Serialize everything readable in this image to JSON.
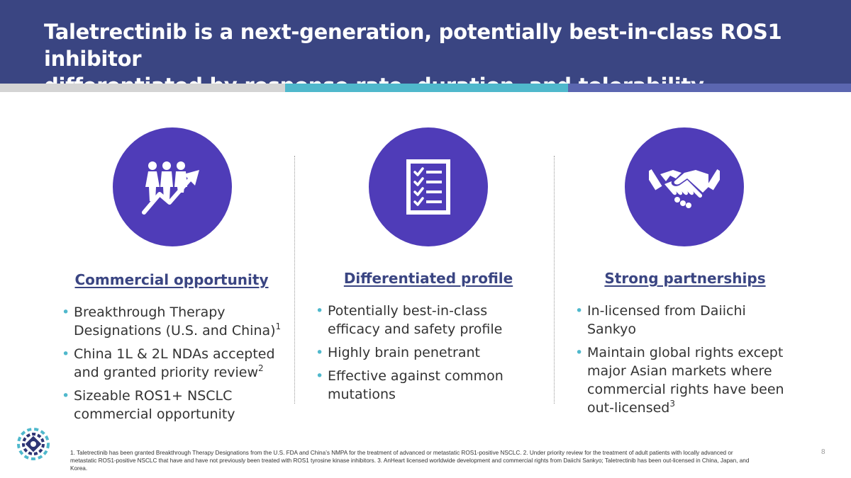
{
  "header": {
    "title_line1": "Taletrectinib is a next-generation, potentially best-in-class ROS1 inhibitor",
    "title_line2": "differentiated by response rate, duration, and tolerability"
  },
  "colors": {
    "header_bg": "#3a4582",
    "circle": "#4f3cb8",
    "accent_teal": "#4fb8cc",
    "accent_gray": "#d4d4d4",
    "accent_blue": "#5b66b0"
  },
  "columns": [
    {
      "icon": "people-growth-icon",
      "heading": "Commercial opportunity",
      "bullets": [
        {
          "text": "Breakthrough Therapy Designations (U.S. and China)",
          "sup": "1"
        },
        {
          "text": "China 1L & 2L NDAs accepted and granted priority review",
          "sup": "2"
        },
        {
          "text": "Sizeable ROS1+ NSCLC commercial opportunity",
          "sup": ""
        }
      ]
    },
    {
      "icon": "checklist-icon",
      "heading": "Differentiated profile",
      "bullets": [
        {
          "text": "Potentially best-in-class efficacy and safety profile",
          "sup": ""
        },
        {
          "text": "Highly brain penetrant",
          "sup": ""
        },
        {
          "text": "Effective against common mutations",
          "sup": ""
        }
      ]
    },
    {
      "icon": "handshake-icon",
      "heading": "Strong partnerships",
      "bullets": [
        {
          "text": "In-licensed from Daiichi Sankyo",
          "sup": ""
        },
        {
          "text": "Maintain global rights except major Asian markets where commercial rights have been out-licensed",
          "sup": "3"
        }
      ]
    }
  ],
  "footnote": "1. Taletrectinib has been granted Breakthrough Therapy Designations from the U.S. FDA and China’s NMPA for the treatment of advanced or metastatic ROS1-positive NSCLC. 2. Under priority review for the treatment of adult patients with locally advanced or metastatic ROS1-positive NSCLC that have and have not previously been treated with ROS1 tyrosine kinase inhibitors. 3. AnHeart licensed worldwide development and commercial rights from Daiichi Sankyo; Taletrectinib has been out-licensed in China, Japan, and Korea.",
  "page_number": "8",
  "logo": "company-logo"
}
